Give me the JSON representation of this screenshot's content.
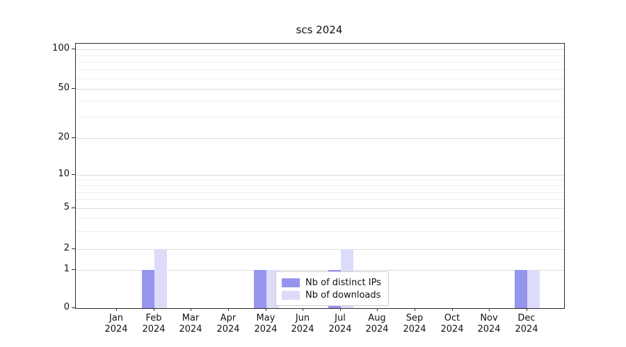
{
  "chart_data": {
    "type": "bar",
    "title": "scs 2024",
    "yscale": "symlog",
    "y_ticks": [
      0,
      1,
      2,
      5,
      10,
      20,
      50,
      100
    ],
    "y_minor_ticks": [
      3,
      4,
      6,
      7,
      8,
      9,
      30,
      40,
      60,
      70,
      80,
      90
    ],
    "ylim": [
      0,
      110
    ],
    "grid": "on",
    "legend_position": "lower center",
    "months": [
      "Jan",
      "Feb",
      "Mar",
      "Apr",
      "May",
      "Jun",
      "Jul",
      "Aug",
      "Sep",
      "Oct",
      "Nov",
      "Dec"
    ],
    "year": "2024",
    "series": [
      {
        "name": "Nb of distinct IPs",
        "color": "#9595ee",
        "values": [
          0,
          1,
          0,
          0,
          1,
          0,
          1,
          0,
          0,
          0,
          0,
          1
        ]
      },
      {
        "name": "Nb of downloads",
        "color": "#dcdcfa",
        "values": [
          0,
          2,
          0,
          0,
          1,
          0,
          2,
          0,
          0,
          0,
          0,
          1
        ]
      }
    ]
  }
}
